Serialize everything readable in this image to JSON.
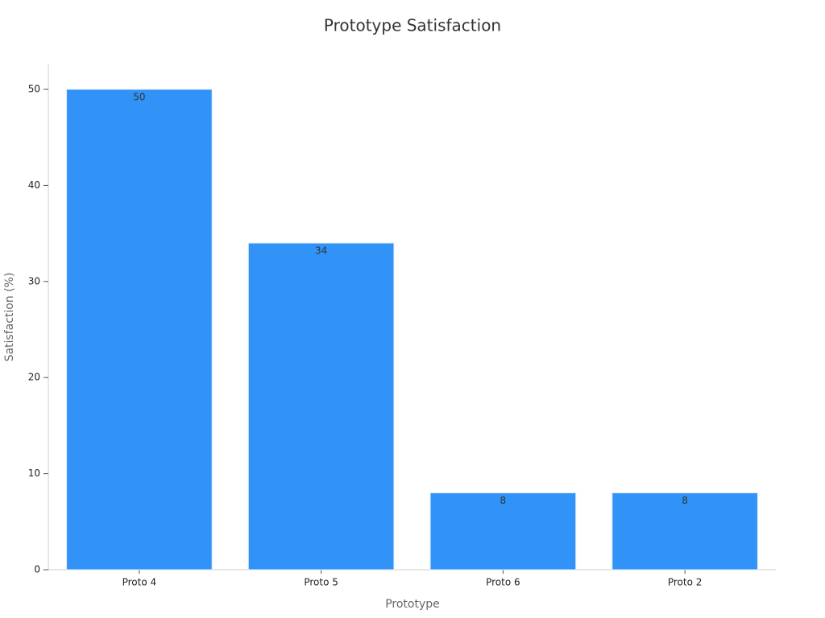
{
  "chart_data": {
    "type": "bar",
    "title": "Prototype Satisfaction",
    "x_label": "Prototype",
    "y_label": "Satisfaction (%)",
    "categories": [
      "Proto 4",
      "Proto 5",
      "Proto 6",
      "Proto 2"
    ],
    "values": [
      50,
      34,
      8,
      8
    ],
    "color": "#3193f7",
    "ylim": [
      0,
      52.6
    ],
    "yticks": [
      0,
      10,
      20,
      30,
      40,
      50
    ],
    "grid": false,
    "data_labels": true
  }
}
